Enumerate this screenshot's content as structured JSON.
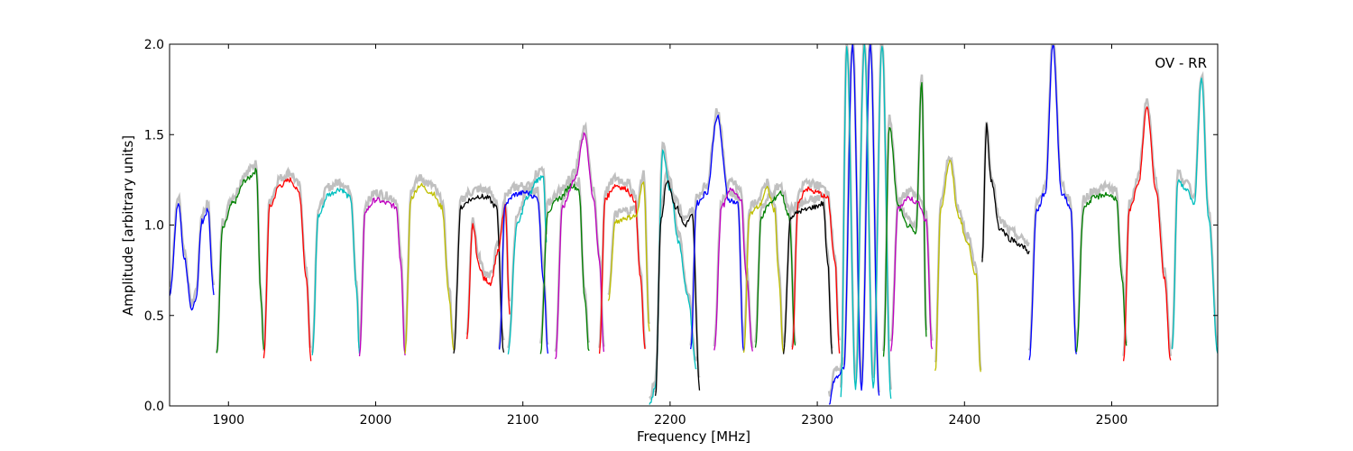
{
  "chart_data": {
    "type": "line",
    "title": "",
    "xlabel": "Frequency [MHz]",
    "ylabel": "Amplitude [arbitrary units]",
    "annotation": "OV - RR",
    "xlim": [
      1860,
      2572
    ],
    "ylim": [
      0.0,
      2.0
    ],
    "xticks": [
      1900,
      2000,
      2100,
      2200,
      2300,
      2400,
      2500
    ],
    "yticks": [
      0.0,
      0.5,
      1.0,
      1.5,
      2.0
    ],
    "xtick_labels": [
      "1900",
      "2000",
      "2100",
      "2200",
      "2300",
      "2400",
      "2500"
    ],
    "ytick_labels": [
      "0.0",
      "0.5",
      "1.0",
      "1.5",
      "2.0"
    ],
    "grid": false,
    "legend": "none",
    "reference_color": "#c0c0c0",
    "series": [
      {
        "color": "#0000ff",
        "x": [
          1860,
          1866,
          1870,
          1875,
          1878,
          1882,
          1886,
          1890
        ],
        "y": [
          0.62,
          1.12,
          0.82,
          0.52,
          0.6,
          1.02,
          1.08,
          0.62
        ]
      },
      {
        "color": "#008000",
        "x": [
          1892,
          1896,
          1903,
          1912,
          1919,
          1922,
          1924
        ],
        "y": [
          0.28,
          0.98,
          1.12,
          1.25,
          1.3,
          0.6,
          0.3
        ]
      },
      {
        "color": "#ff0000",
        "x": [
          1924,
          1928,
          1935,
          1942,
          1948,
          1953,
          1956
        ],
        "y": [
          0.26,
          1.1,
          1.22,
          1.25,
          1.18,
          0.7,
          0.26
        ]
      },
      {
        "color": "#00bfbf",
        "x": [
          1957,
          1961,
          1968,
          1976,
          1983,
          1987,
          1989
        ],
        "y": [
          0.28,
          1.05,
          1.17,
          1.2,
          1.15,
          0.65,
          0.28
        ]
      },
      {
        "color": "#bf00bf",
        "x": [
          1989,
          1993,
          2000,
          2008,
          2014,
          2017,
          2020
        ],
        "y": [
          0.28,
          1.08,
          1.14,
          1.12,
          1.1,
          0.8,
          0.28
        ]
      },
      {
        "color": "#bfbf00",
        "x": [
          2020,
          2024,
          2030,
          2038,
          2045,
          2050,
          2053
        ],
        "y": [
          0.3,
          1.15,
          1.22,
          1.18,
          1.1,
          0.6,
          0.3
        ]
      },
      {
        "color": "#000000",
        "x": [
          2053,
          2058,
          2064,
          2070,
          2076,
          2082,
          2087
        ],
        "y": [
          0.3,
          1.1,
          1.14,
          1.16,
          1.15,
          1.1,
          0.3
        ]
      },
      {
        "color": "#ff0000",
        "x": [
          2062,
          2066,
          2070,
          2074,
          2078,
          2083,
          2088,
          2091
        ],
        "y": [
          0.37,
          1.0,
          0.78,
          0.7,
          0.68,
          0.85,
          1.1,
          0.52
        ]
      },
      {
        "color": "#0000ff",
        "x": [
          2084,
          2088,
          2095,
          2102,
          2110,
          2114,
          2117
        ],
        "y": [
          0.3,
          1.12,
          1.17,
          1.18,
          1.15,
          0.7,
          0.3
        ]
      },
      {
        "color": "#00bfbf",
        "x": [
          2090,
          2096,
          2103,
          2110,
          2114,
          2116
        ],
        "y": [
          0.3,
          1.0,
          1.15,
          1.25,
          1.28,
          0.9
        ]
      },
      {
        "color": "#008000",
        "x": [
          2112,
          2117,
          2125,
          2133,
          2138,
          2142,
          2145
        ],
        "y": [
          0.3,
          1.08,
          1.15,
          1.22,
          1.2,
          0.6,
          0.3
        ]
      },
      {
        "color": "#bf00bf",
        "x": [
          2122,
          2127,
          2135,
          2142,
          2148,
          2152,
          2155
        ],
        "y": [
          0.25,
          1.1,
          1.25,
          1.5,
          1.15,
          0.8,
          0.3
        ]
      },
      {
        "color": "#ff0000",
        "x": [
          2152,
          2156,
          2163,
          2170,
          2176,
          2180,
          2183
        ],
        "y": [
          0.3,
          1.15,
          1.22,
          1.2,
          1.14,
          0.7,
          0.3
        ]
      },
      {
        "color": "#bfbf00",
        "x": [
          2158,
          2163,
          2170,
          2177,
          2182,
          2186
        ],
        "y": [
          0.58,
          1.02,
          1.04,
          1.05,
          1.25,
          0.4
        ]
      },
      {
        "color": "#00bfbf",
        "x": [
          2186,
          2190,
          2195,
          2200,
          2206,
          2212,
          2218
        ],
        "y": [
          0.0,
          0.1,
          1.4,
          1.2,
          0.9,
          0.6,
          0.2
        ]
      },
      {
        "color": "#000000",
        "x": [
          2190,
          2194,
          2198,
          2204,
          2210,
          2215,
          2220
        ],
        "y": [
          0.05,
          1.05,
          1.25,
          1.1,
          1.0,
          1.05,
          0.1
        ]
      },
      {
        "color": "#0000ff",
        "x": [
          2214,
          2218,
          2225,
          2232,
          2240,
          2246,
          2250
        ],
        "y": [
          0.3,
          1.12,
          1.18,
          1.6,
          1.14,
          1.12,
          0.3
        ]
      },
      {
        "color": "#bf00bf",
        "x": [
          2230,
          2235,
          2242,
          2248,
          2252,
          2256
        ],
        "y": [
          0.3,
          1.1,
          1.2,
          1.15,
          0.7,
          0.3
        ]
      },
      {
        "color": "#bfbf00",
        "x": [
          2250,
          2254,
          2260,
          2266,
          2271,
          2274,
          2277
        ],
        "y": [
          0.28,
          1.06,
          1.1,
          1.2,
          1.08,
          0.7,
          0.28
        ]
      },
      {
        "color": "#008000",
        "x": [
          2258,
          2262,
          2268,
          2275,
          2281,
          2285
        ],
        "y": [
          0.32,
          1.05,
          1.12,
          1.18,
          1.05,
          0.32
        ]
      },
      {
        "color": "#ff0000",
        "x": [
          2283,
          2287,
          2292,
          2300,
          2307,
          2312,
          2315
        ],
        "y": [
          0.3,
          1.12,
          1.2,
          1.18,
          1.15,
          0.8,
          0.3
        ]
      },
      {
        "color": "#000000",
        "x": [
          2277,
          2282,
          2290,
          2298,
          2304,
          2307,
          2310
        ],
        "y": [
          0.3,
          1.05,
          1.08,
          1.1,
          1.12,
          0.8,
          0.3
        ]
      },
      {
        "color": "#0000ff",
        "x": [
          2308,
          2312,
          2318,
          2324,
          2330,
          2336,
          2342
        ],
        "y": [
          0.02,
          0.15,
          0.2,
          2.0,
          0.1,
          2.0,
          0.05
        ]
      },
      {
        "color": "#00bfbf",
        "x": [
          2316,
          2320,
          2326,
          2332,
          2338,
          2344,
          2350
        ],
        "y": [
          0.05,
          2.0,
          0.1,
          2.0,
          0.1,
          2.0,
          0.05
        ]
      },
      {
        "color": "#008000",
        "x": [
          2345,
          2349,
          2355,
          2361,
          2367,
          2371,
          2374
        ],
        "y": [
          0.28,
          1.55,
          1.1,
          1.0,
          0.95,
          1.8,
          0.38
        ]
      },
      {
        "color": "#bf00bf",
        "x": [
          2350,
          2355,
          2362,
          2369,
          2374,
          2378
        ],
        "y": [
          0.3,
          1.1,
          1.15,
          1.12,
          1.02,
          0.3
        ]
      },
      {
        "color": "#bfbf00",
        "x": [
          2380,
          2384,
          2390,
          2396,
          2402,
          2408,
          2411
        ],
        "y": [
          0.18,
          1.1,
          1.35,
          1.05,
          0.9,
          0.72,
          0.18
        ]
      },
      {
        "color": "#000000",
        "x": [
          2412,
          2415,
          2418,
          2424,
          2432,
          2440,
          2444
        ],
        "y": [
          0.8,
          1.55,
          1.25,
          0.98,
          0.92,
          0.88,
          0.85
        ]
      },
      {
        "color": "#0000ff",
        "x": [
          2444,
          2449,
          2455,
          2460,
          2466,
          2472,
          2476
        ],
        "y": [
          0.25,
          1.08,
          1.18,
          2.0,
          1.18,
          1.1,
          0.28
        ]
      },
      {
        "color": "#008000",
        "x": [
          2476,
          2481,
          2488,
          2496,
          2503,
          2507,
          2510
        ],
        "y": [
          0.3,
          1.1,
          1.15,
          1.17,
          1.15,
          0.7,
          0.32
        ]
      },
      {
        "color": "#ff0000",
        "x": [
          2508,
          2512,
          2518,
          2524,
          2530,
          2536,
          2540
        ],
        "y": [
          0.25,
          1.08,
          1.22,
          1.65,
          1.2,
          0.7,
          0.25
        ]
      },
      {
        "color": "#00bfbf",
        "x": [
          2541,
          2545,
          2550,
          2556,
          2561,
          2566,
          2572
        ],
        "y": [
          0.3,
          1.25,
          1.2,
          1.12,
          1.8,
          1.02,
          0.3
        ]
      }
    ]
  }
}
